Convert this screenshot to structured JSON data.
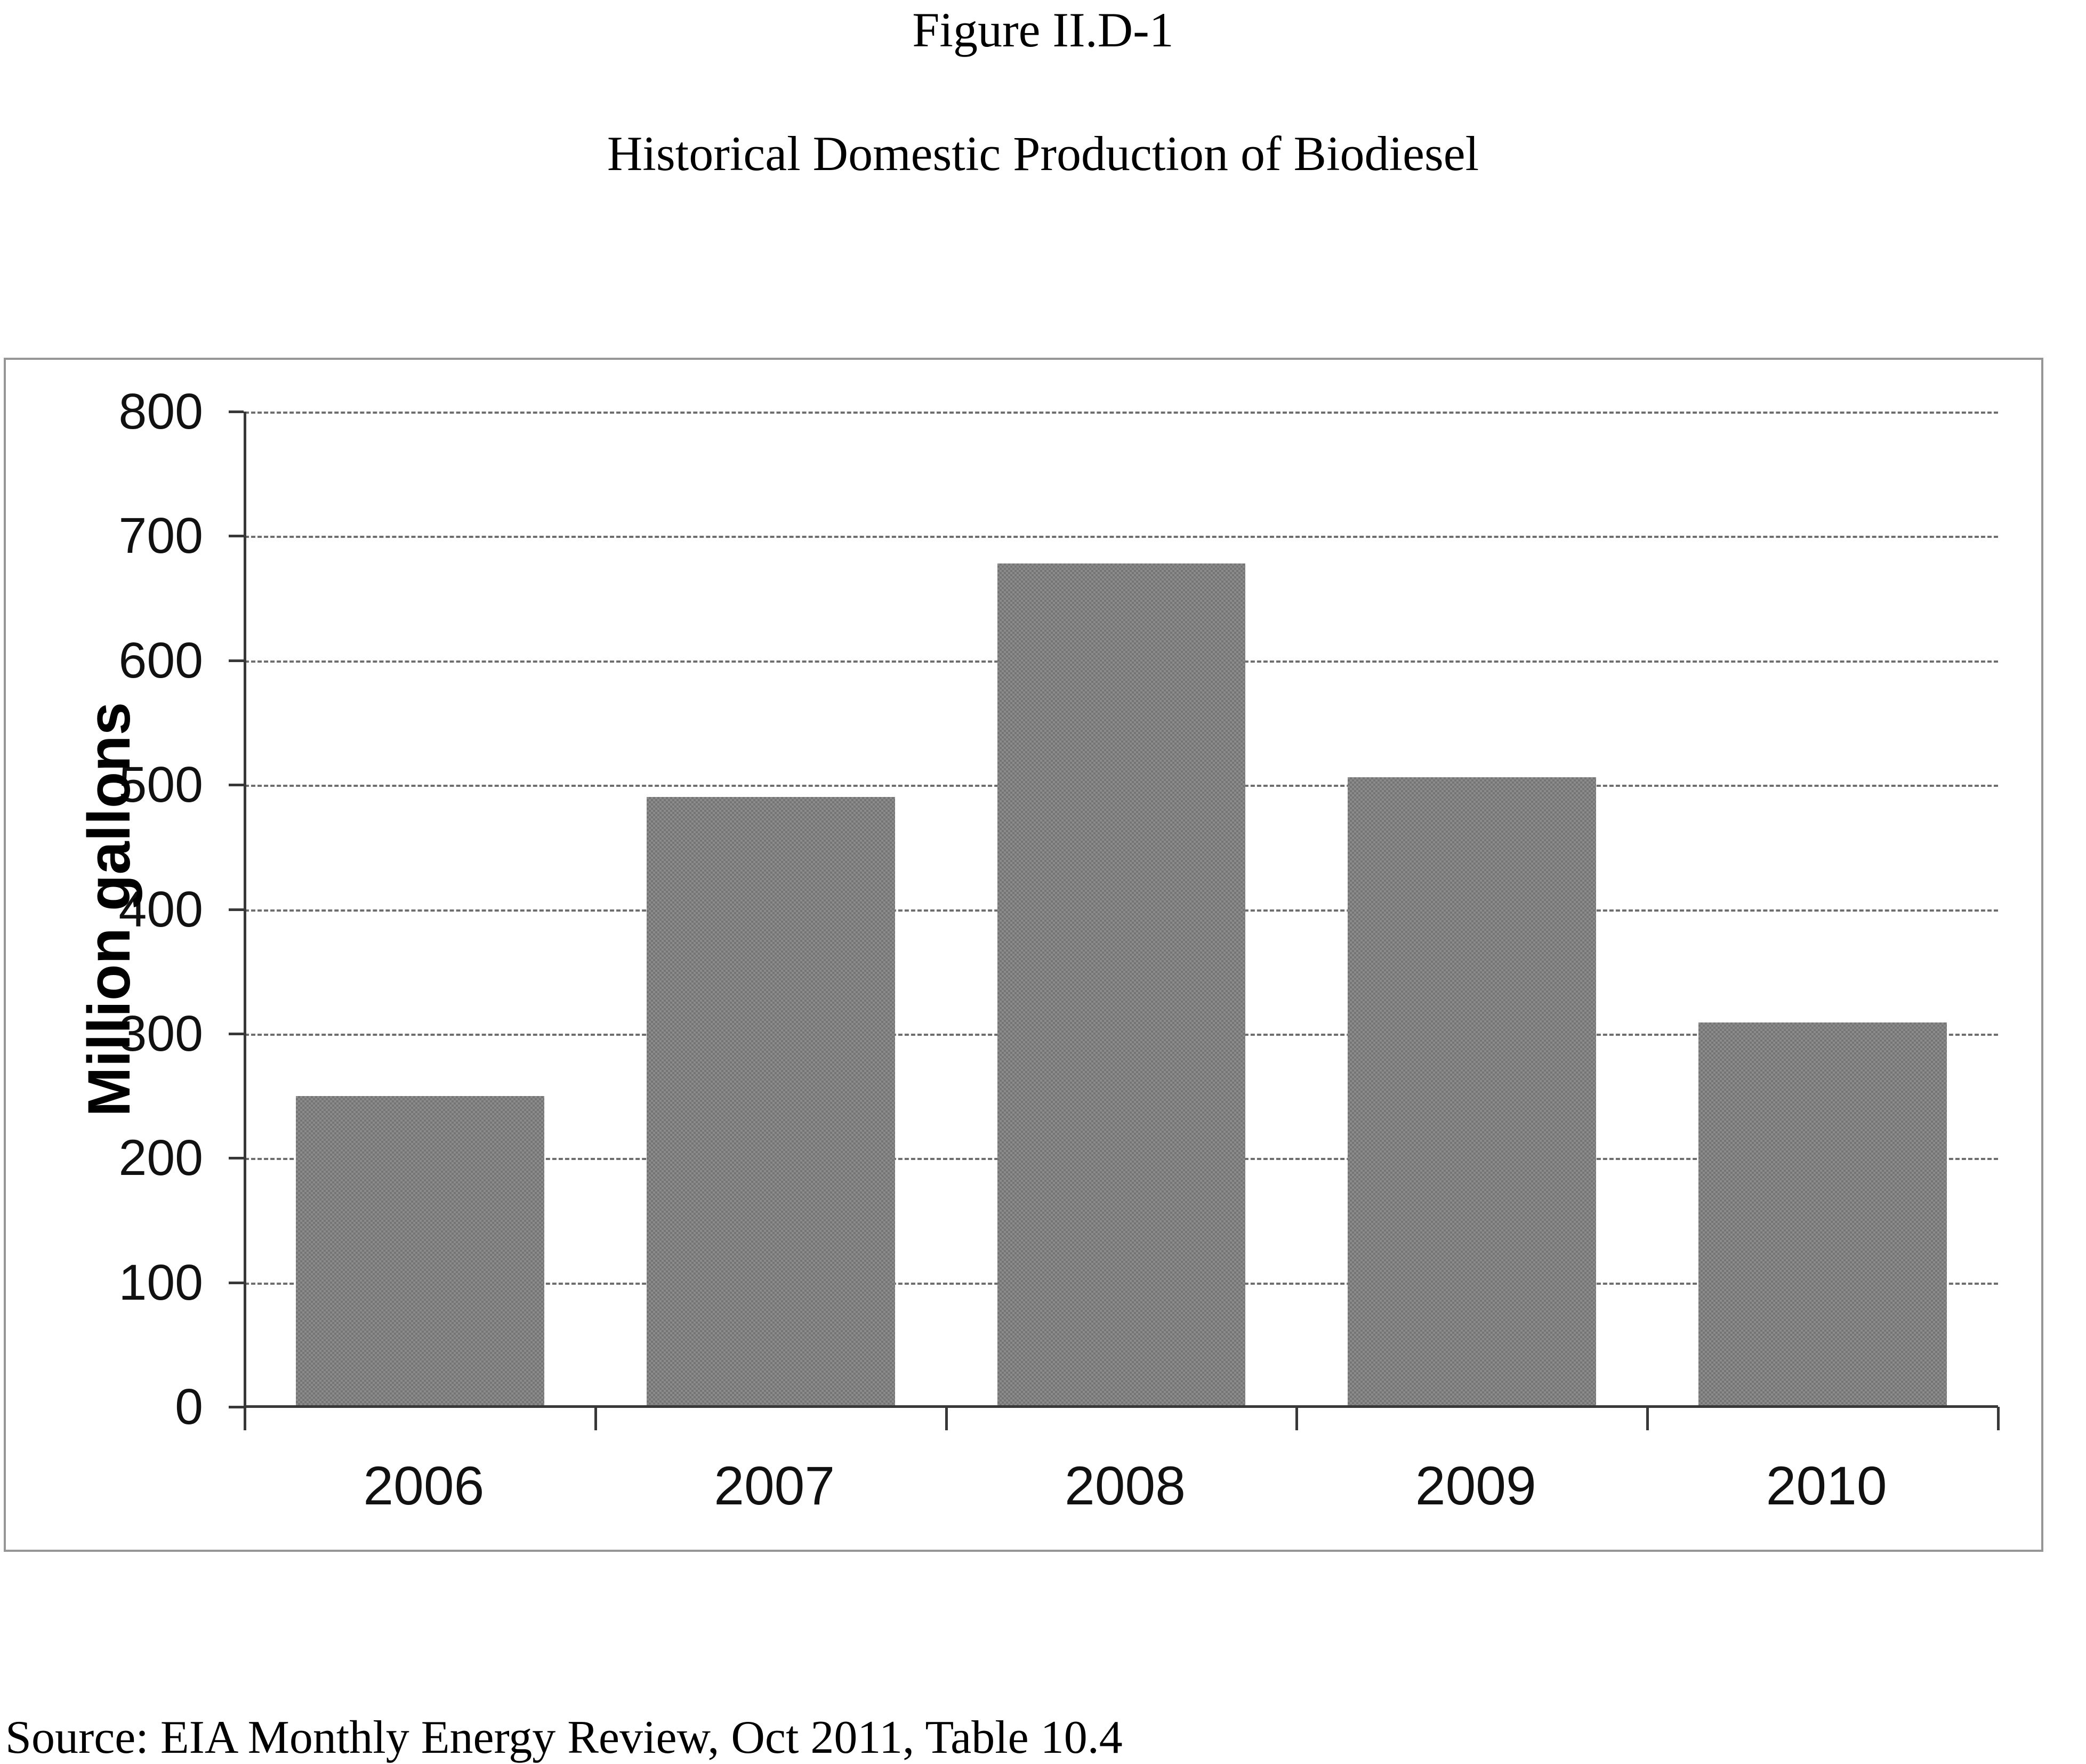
{
  "figure": {
    "label": "Figure II.D-1",
    "title": "Historical Domestic Production of Biodiesel",
    "source": "Source: EIA Monthly Energy Review, Oct 2011, Table 10.4"
  },
  "chart_data": {
    "type": "bar",
    "categories": [
      "2006",
      "2007",
      "2008",
      "2009",
      "2010"
    ],
    "values": [
      250,
      490,
      678,
      506,
      309
    ],
    "title": "",
    "xlabel": "",
    "ylabel": "Million gallons",
    "ylim": [
      0,
      800
    ],
    "yticks": [
      0,
      100,
      200,
      300,
      400,
      500,
      600,
      700,
      800
    ],
    "grid": true,
    "legend": false,
    "bar_color": "#7f7f7f",
    "gridline_color": "#6e6e6e",
    "axis_color": "#383838",
    "frame_color": "#969696"
  }
}
